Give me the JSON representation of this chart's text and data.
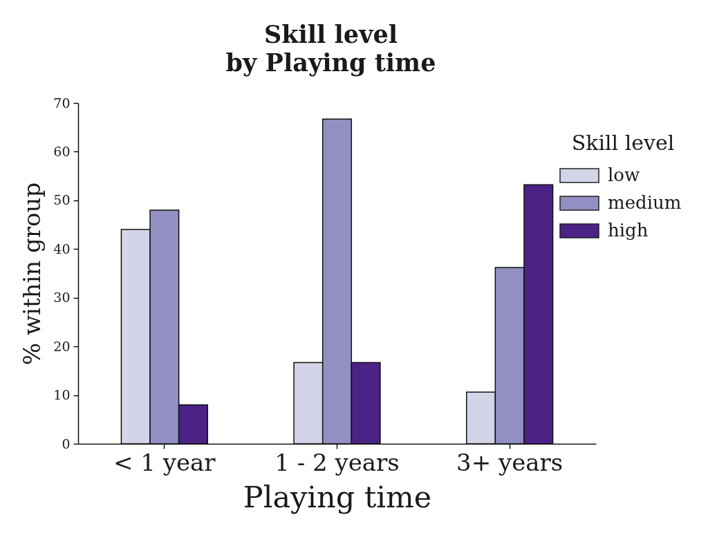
{
  "chart_data": {
    "type": "bar",
    "title": "Skill level\nby Playing time",
    "xlabel": "Playing time",
    "ylabel": "% within group",
    "legend_title": "Skill level",
    "categories": [
      "< 1 year",
      "1 - 2 years",
      "3+ years"
    ],
    "series": [
      {
        "name": "low",
        "color": "#d4d4e8",
        "values": [
          44.0,
          16.7,
          10.6
        ]
      },
      {
        "name": "medium",
        "color": "#928fc2",
        "values": [
          48.0,
          66.7,
          36.2
        ]
      },
      {
        "name": "high",
        "color": "#4b2285",
        "values": [
          8.0,
          16.7,
          53.2
        ]
      }
    ],
    "ylim": [
      0,
      70
    ],
    "yticks": [
      0,
      10,
      20,
      30,
      40,
      50,
      60,
      70
    ],
    "grid": false,
    "legend": "top right"
  }
}
